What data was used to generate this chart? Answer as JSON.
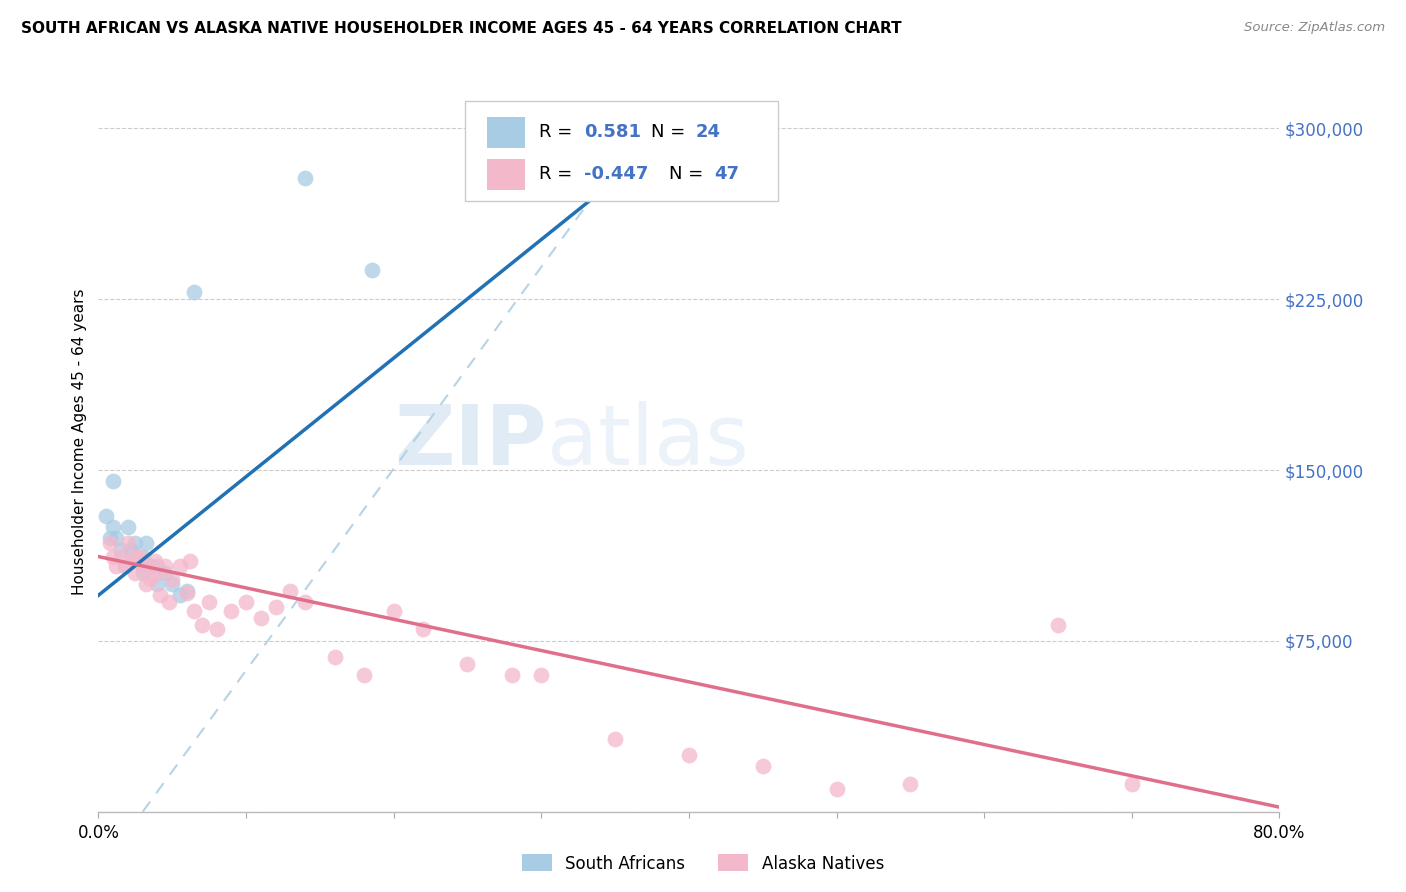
{
  "title": "SOUTH AFRICAN VS ALASKA NATIVE HOUSEHOLDER INCOME AGES 45 - 64 YEARS CORRELATION CHART",
  "source": "Source: ZipAtlas.com",
  "ylabel": "Householder Income Ages 45 - 64 years",
  "xlim": [
    0.0,
    0.8
  ],
  "ylim": [
    0,
    325000
  ],
  "blue_color": "#a8cce4",
  "pink_color": "#f4b8cb",
  "blue_line_color": "#2171b5",
  "pink_line_color": "#e0708a",
  "dashed_line_color": "#b0cfe0",
  "accent_color": "#4472C4",
  "r_blue": "0.581",
  "n_blue": "24",
  "r_pink": "-0.447",
  "n_pink": "47",
  "south_african_x": [
    0.005,
    0.008,
    0.01,
    0.01,
    0.012,
    0.015,
    0.018,
    0.02,
    0.022,
    0.025,
    0.025,
    0.03,
    0.03,
    0.032,
    0.035,
    0.04,
    0.04,
    0.045,
    0.05,
    0.055,
    0.06,
    0.065,
    0.14,
    0.185
  ],
  "south_african_y": [
    130000,
    120000,
    145000,
    125000,
    120000,
    115000,
    108000,
    125000,
    115000,
    118000,
    110000,
    112000,
    105000,
    118000,
    108000,
    108000,
    100000,
    105000,
    100000,
    95000,
    97000,
    228000,
    278000,
    238000
  ],
  "alaska_x": [
    0.008,
    0.01,
    0.012,
    0.015,
    0.018,
    0.02,
    0.022,
    0.025,
    0.025,
    0.028,
    0.03,
    0.032,
    0.034,
    0.035,
    0.038,
    0.04,
    0.042,
    0.045,
    0.048,
    0.05,
    0.055,
    0.06,
    0.062,
    0.065,
    0.07,
    0.075,
    0.08,
    0.09,
    0.1,
    0.11,
    0.12,
    0.13,
    0.14,
    0.16,
    0.18,
    0.2,
    0.22,
    0.25,
    0.28,
    0.3,
    0.35,
    0.4,
    0.45,
    0.5,
    0.55,
    0.65,
    0.7
  ],
  "alaska_y": [
    118000,
    112000,
    108000,
    112000,
    108000,
    118000,
    110000,
    112000,
    105000,
    112000,
    108000,
    100000,
    108000,
    102000,
    110000,
    105000,
    95000,
    108000,
    92000,
    102000,
    108000,
    96000,
    110000,
    88000,
    82000,
    92000,
    80000,
    88000,
    92000,
    85000,
    90000,
    97000,
    92000,
    68000,
    60000,
    88000,
    80000,
    65000,
    60000,
    60000,
    32000,
    25000,
    20000,
    10000,
    12000,
    82000,
    12000
  ],
  "blue_line_x0": 0.0,
  "blue_line_y0": 95000,
  "blue_line_x1": 0.34,
  "blue_line_y1": 272000,
  "pink_line_x0": 0.0,
  "pink_line_y0": 112000,
  "pink_line_x1": 0.8,
  "pink_line_y1": 2000,
  "dash_line_x0": 0.03,
  "dash_line_y0": 0,
  "dash_line_x1": 0.38,
  "dash_line_y1": 310000
}
